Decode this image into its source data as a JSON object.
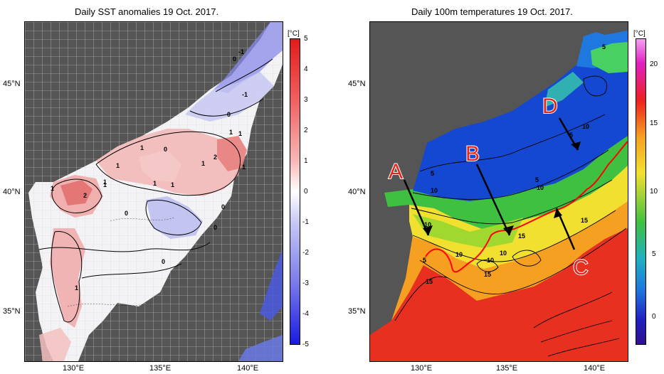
{
  "left_panel": {
    "title": "Daily SST anomalies 19 Oct. 2017.",
    "unit": "[°C]",
    "colorbar_labels": [
      "5",
      "4",
      "3",
      "2",
      "1",
      "0",
      "-1",
      "-2",
      "-3",
      "-4",
      "-5"
    ],
    "colorbar_range": [
      -5,
      5
    ],
    "colors": {
      "positive_max": "#e02020",
      "negative_max": "#2020e0",
      "zero": "#ffffff",
      "land": "#555555"
    },
    "contour_labels": [
      "-1",
      "0",
      "-1",
      "0",
      "1",
      "1",
      "1",
      "2",
      "1",
      "0",
      "1",
      "1",
      "1",
      "1",
      "0",
      "1",
      "2",
      "1",
      "0",
      "1",
      "0",
      "0",
      "1"
    ]
  },
  "right_panel": {
    "title": "Daily 100m temperatures 19 Oct. 2017.",
    "unit": "[°C]",
    "colorbar_labels": [
      "20",
      "15",
      "10",
      "5",
      "0"
    ],
    "colorbar_range": [
      -3,
      23
    ],
    "colors": {
      "warm": "#ee2020",
      "cold": "#1040d0",
      "front_line": "#ff0000",
      "land": "#555555"
    },
    "contour_labels": [
      "5",
      "10",
      "5",
      "5",
      "10",
      "5",
      "10",
      "10",
      "15",
      "15",
      "5",
      "10",
      "10",
      "15",
      "10",
      "15"
    ],
    "annotation_letters": [
      "A",
      "B",
      "C",
      "D"
    ]
  },
  "axes": {
    "lat_labels": [
      "45°N",
      "40°N",
      "35°N"
    ],
    "lon_labels": [
      "130°E",
      "135°E",
      "140°E"
    ]
  }
}
